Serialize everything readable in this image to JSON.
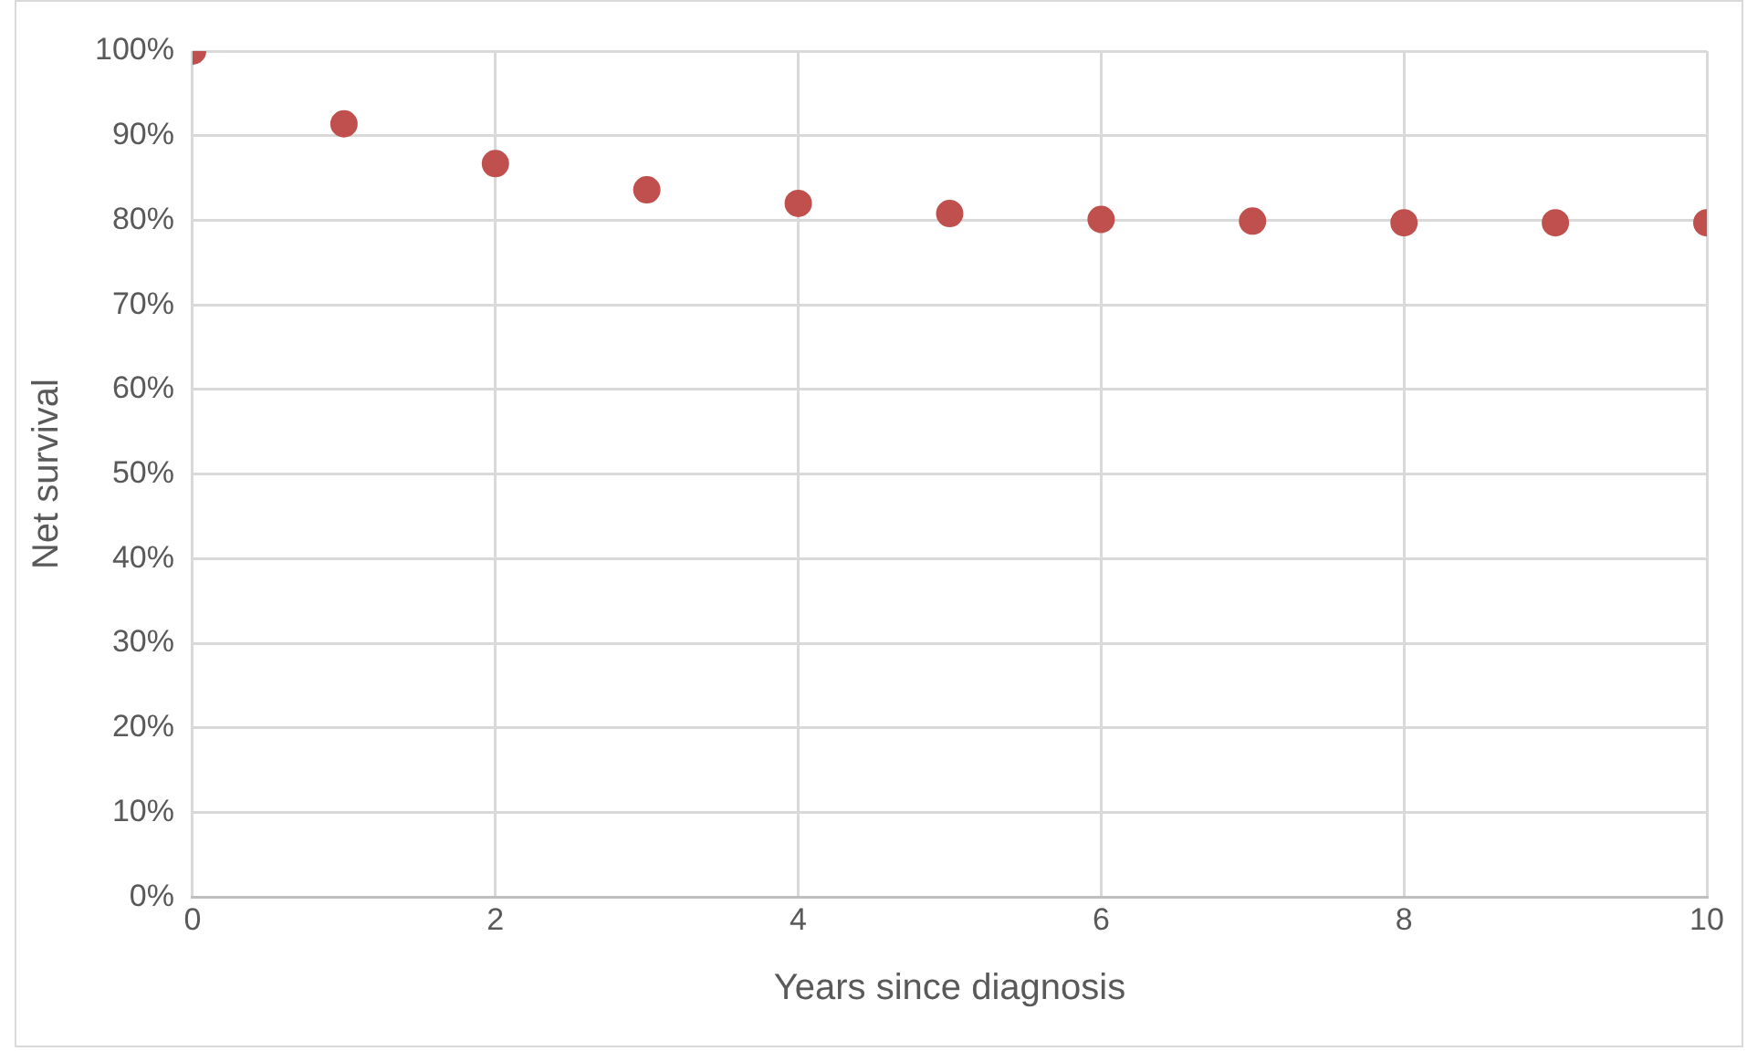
{
  "chart_data": {
    "type": "scatter",
    "xlabel": "Years since diagnosis",
    "ylabel": "Net survival",
    "x": [
      0,
      1,
      2,
      3,
      4,
      5,
      6,
      7,
      8,
      9,
      10
    ],
    "series": [
      {
        "color": "#c0504d",
        "values": [
          100,
          91.4,
          86.7,
          83.6,
          82.0,
          80.8,
          80.1,
          79.9,
          79.7,
          79.7,
          79.7
        ]
      }
    ],
    "xlim": [
      0,
      10
    ],
    "xticks": [
      0,
      2,
      4,
      6,
      8,
      10
    ],
    "ylim": [
      0,
      100
    ],
    "yticks": [
      {
        "value": 0,
        "label": "0%"
      },
      {
        "value": 10,
        "label": "10%"
      },
      {
        "value": 20,
        "label": "20%"
      },
      {
        "value": 30,
        "label": "30%"
      },
      {
        "value": 40,
        "label": "40%"
      },
      {
        "value": 50,
        "label": "50%"
      },
      {
        "value": 60,
        "label": "60%"
      },
      {
        "value": 70,
        "label": "70%"
      },
      {
        "value": 80,
        "label": "80%"
      },
      {
        "value": 90,
        "label": "90%"
      },
      {
        "value": 100,
        "label": "100%"
      }
    ],
    "grid": true,
    "marker": "circle"
  }
}
